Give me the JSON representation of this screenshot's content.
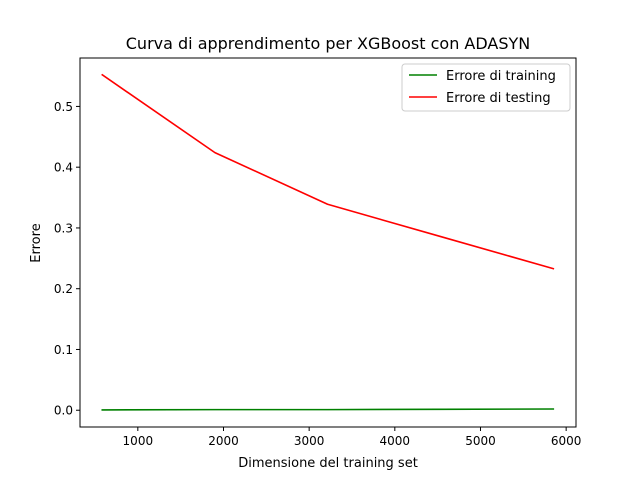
{
  "chart_data": {
    "type": "line",
    "title": "Curva di apprendimento per XGBoost con ADASYN",
    "xlabel": "Dimensione del training set",
    "ylabel": "Errore",
    "xlim": [
      325,
      6115
    ],
    "ylim": [
      -0.0276,
      0.5797
    ],
    "xticks": [
      1000,
      2000,
      3000,
      4000,
      5000,
      6000
    ],
    "xtick_labels": [
      "1000",
      "2000",
      "3000",
      "4000",
      "5000",
      "6000"
    ],
    "yticks": [
      0.0,
      0.1,
      0.2,
      0.3,
      0.4,
      0.5
    ],
    "ytick_labels": [
      "0.0",
      "0.1",
      "0.2",
      "0.3",
      "0.4",
      "0.5"
    ],
    "grid": false,
    "legend_position": "top-right",
    "x": [
      585,
      1900,
      3215,
      4530,
      5850
    ],
    "series": [
      {
        "name": "Errore di training",
        "color": "#008000",
        "values": [
          0.0005,
          0.001,
          0.001,
          0.0015,
          0.002
        ]
      },
      {
        "name": "Errore di testing",
        "color": "#ff0000",
        "values": [
          0.552,
          0.424,
          0.339,
          0.286,
          0.233
        ]
      }
    ]
  }
}
